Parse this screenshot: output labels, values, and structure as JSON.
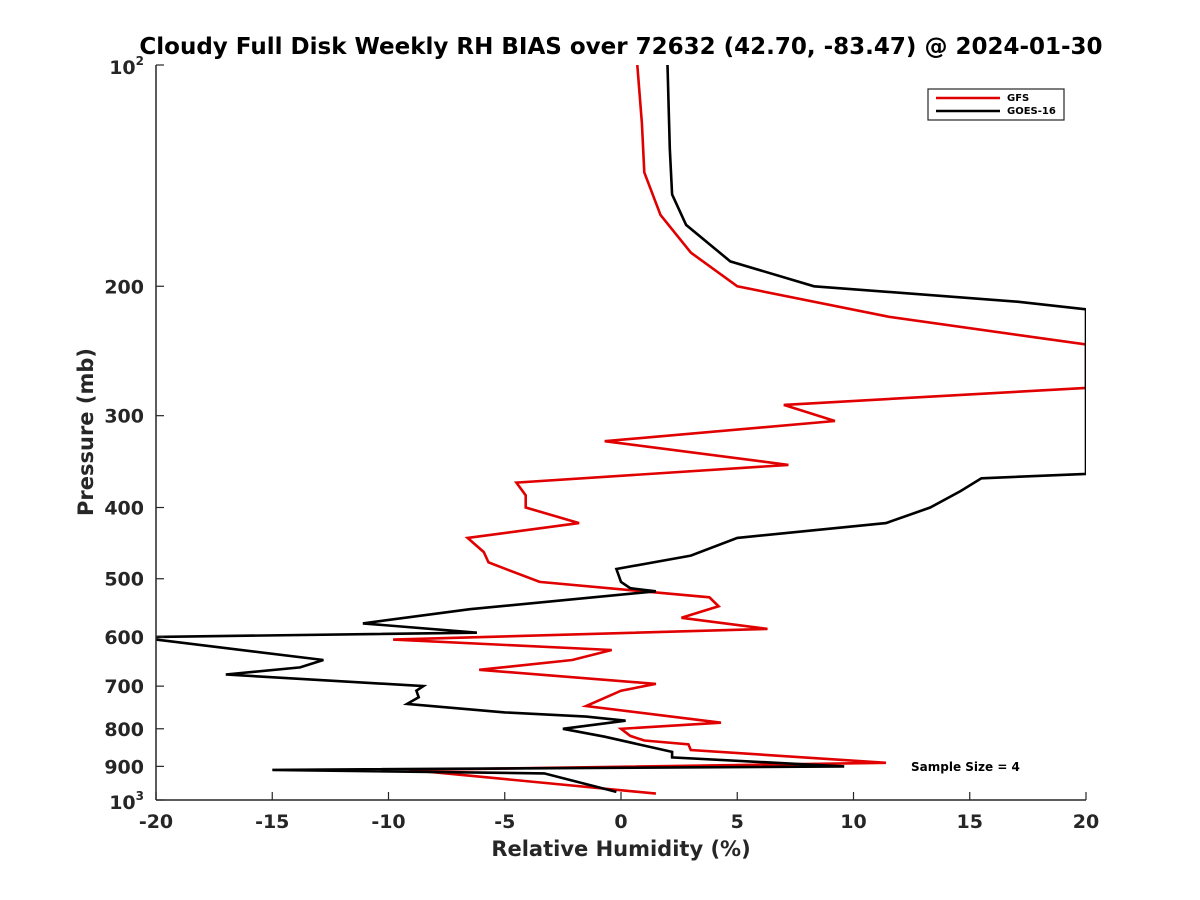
{
  "chart_data": {
    "type": "line",
    "title": "Cloudy Full Disk Weekly RH BIAS over 72632 (42.70, -83.47) @ 2024-01-30",
    "xlabel": "Relative Humidity (%)",
    "ylabel": "Pressure (mb)",
    "xlim": [
      -20,
      20
    ],
    "ylim": [
      100,
      1000
    ],
    "y_scale": "log",
    "y_reversed": true,
    "grid": false,
    "legend_position": "top-right",
    "x_ticks": [
      "-20",
      "-15",
      "-10",
      "-5",
      "0",
      "5",
      "10",
      "15",
      "20"
    ],
    "y_ticks": [
      {
        "value": 100,
        "base": "10",
        "exp": "2"
      },
      {
        "value": 200,
        "label": "200"
      },
      {
        "value": 300,
        "label": "300"
      },
      {
        "value": 400,
        "label": "400"
      },
      {
        "value": 500,
        "label": "500"
      },
      {
        "value": 600,
        "label": "600"
      },
      {
        "value": 700,
        "label": "700"
      },
      {
        "value": 800,
        "label": "800"
      },
      {
        "value": 900,
        "label": "900"
      },
      {
        "value": 1000,
        "base": "10",
        "exp": "3"
      }
    ],
    "annotation": "Sample Size = 4",
    "series": [
      {
        "name": "GFS",
        "color": "#e00000",
        "points": [
          [
            0.7,
            100
          ],
          [
            0.9,
            120
          ],
          [
            1.0,
            140
          ],
          [
            1.7,
            160
          ],
          [
            3.0,
            180
          ],
          [
            5.0,
            200
          ],
          [
            11.5,
            220
          ],
          [
            20,
            240
          ],
          [
            20,
            275
          ],
          [
            7.0,
            290
          ],
          [
            9.2,
            305
          ],
          [
            -0.7,
            325
          ],
          [
            7.2,
            350
          ],
          [
            -4.5,
            370
          ],
          [
            -4.1,
            385
          ],
          [
            -4.1,
            400
          ],
          [
            -1.8,
            420
          ],
          [
            -6.6,
            440
          ],
          [
            -5.9,
            460
          ],
          [
            -5.7,
            475
          ],
          [
            -3.5,
            505
          ],
          [
            3.8,
            530
          ],
          [
            4.2,
            545
          ],
          [
            2.6,
            565
          ],
          [
            6.3,
            585
          ],
          [
            -9.8,
            605
          ],
          [
            -0.4,
            625
          ],
          [
            -2.1,
            645
          ],
          [
            -6.1,
            665
          ],
          [
            1.5,
            695
          ],
          [
            0.0,
            710
          ],
          [
            -1.5,
            745
          ],
          [
            4.3,
            785
          ],
          [
            0.0,
            800
          ],
          [
            0.4,
            818
          ],
          [
            1.0,
            830
          ],
          [
            2.9,
            840
          ],
          [
            3.0,
            855
          ],
          [
            11.4,
            890
          ],
          [
            -9.1,
            910
          ],
          [
            1.5,
            980
          ]
        ]
      },
      {
        "name": "GOES-16",
        "color": "#000000",
        "points": [
          [
            2.0,
            100
          ],
          [
            2.1,
            130
          ],
          [
            2.2,
            150
          ],
          [
            2.8,
            165
          ],
          [
            4.7,
            185
          ],
          [
            8.3,
            200
          ],
          [
            17.1,
            210
          ],
          [
            20,
            215
          ],
          [
            20,
            360
          ],
          [
            15.5,
            365
          ],
          [
            14.6,
            380
          ],
          [
            13.3,
            400
          ],
          [
            11.4,
            420
          ],
          [
            5.0,
            440
          ],
          [
            3.0,
            465
          ],
          [
            -0.2,
            485
          ],
          [
            0.0,
            505
          ],
          [
            0.4,
            515
          ],
          [
            1.5,
            520
          ],
          [
            -6.5,
            550
          ],
          [
            -11.1,
            575
          ],
          [
            -6.2,
            592
          ],
          [
            -20,
            600
          ],
          [
            -20,
            605
          ],
          [
            -12.8,
            645
          ],
          [
            -13.8,
            660
          ],
          [
            -17.0,
            675
          ],
          [
            -8.5,
            700
          ],
          [
            -8.8,
            710
          ],
          [
            -8.7,
            725
          ],
          [
            -9.2,
            740
          ],
          [
            -5.0,
            760
          ],
          [
            -1.5,
            770
          ],
          [
            0.2,
            780
          ],
          [
            -2.5,
            800
          ],
          [
            -0.7,
            820
          ],
          [
            2.2,
            860
          ],
          [
            2.2,
            875
          ],
          [
            9.6,
            900
          ],
          [
            -15.0,
            910
          ],
          [
            -3.3,
            920
          ],
          [
            -0.2,
            975
          ]
        ]
      }
    ]
  }
}
